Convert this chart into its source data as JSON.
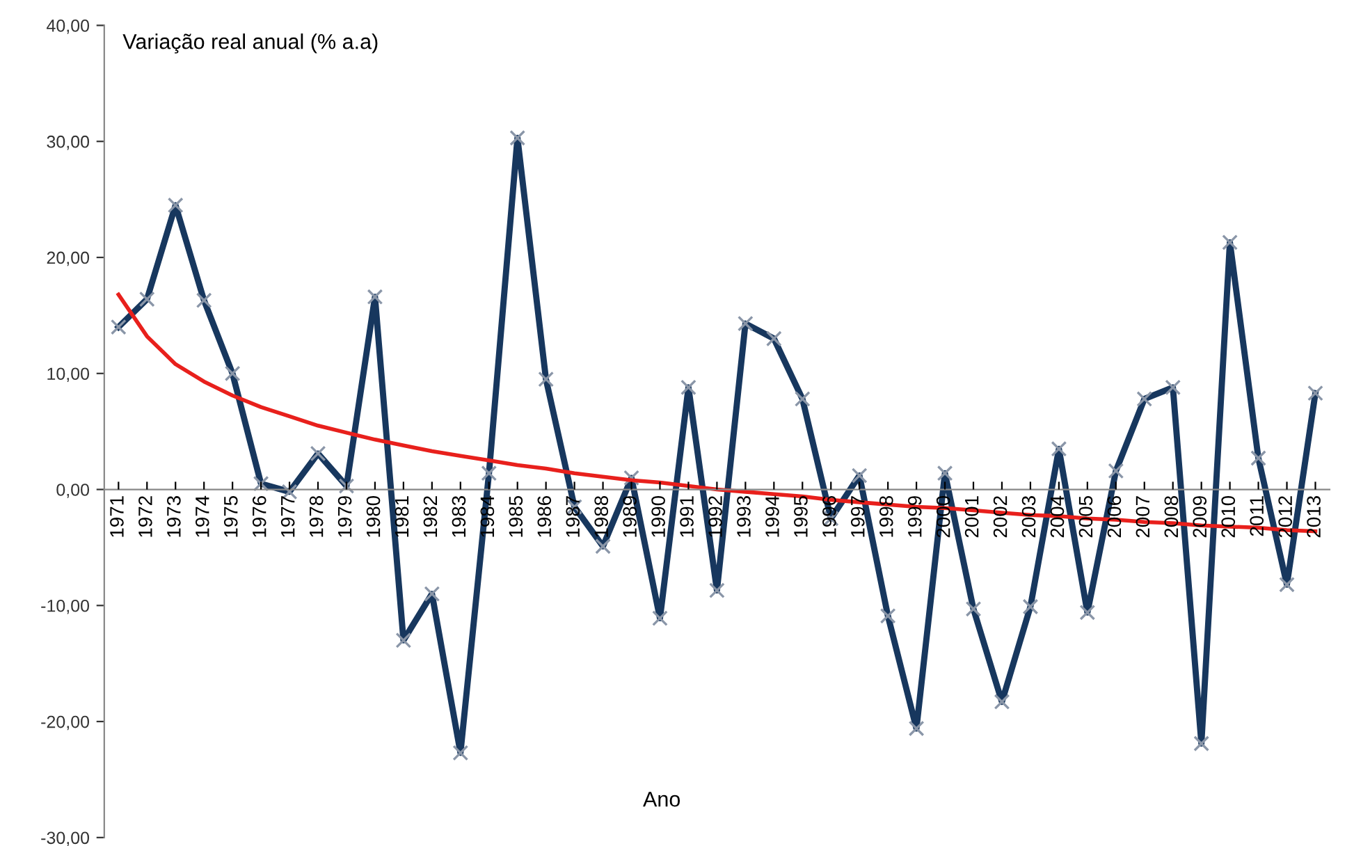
{
  "chart_data": {
    "type": "line",
    "ylabel": "Variação real anual (% a.a)",
    "xlabel": "Ano",
    "categories": [
      "1971",
      "1972",
      "1973",
      "1974",
      "1975",
      "1976",
      "1977",
      "1978",
      "1979",
      "1980",
      "1981",
      "1982",
      "1983",
      "1984",
      "1985",
      "1986",
      "1987",
      "1988",
      "1989",
      "1990",
      "1991",
      "1992",
      "1993",
      "1994",
      "1995",
      "1996",
      "1997",
      "1998",
      "1999",
      "2000",
      "2001",
      "2002",
      "2003",
      "2004",
      "2005",
      "2006",
      "2007",
      "2008",
      "2009",
      "2010",
      "2011",
      "2012",
      "2013"
    ],
    "series": [
      {
        "color": "#17375e",
        "marker": "cross",
        "values": [
          14.0,
          16.4,
          24.5,
          16.3,
          10.0,
          0.5,
          -0.2,
          3.1,
          0.3,
          16.6,
          -13.0,
          -9.0,
          -22.7,
          1.4,
          30.3,
          9.5,
          -1.5,
          -4.9,
          1.0,
          -11.1,
          8.8,
          -8.7,
          14.3,
          13.0,
          7.8,
          -2.5,
          1.2,
          -10.9,
          -20.6,
          1.4,
          -10.3,
          -18.3,
          -10.1,
          3.5,
          -10.6,
          1.6,
          7.8,
          8.8,
          -21.9,
          21.3,
          2.7,
          -8.2,
          8.3
        ]
      },
      {
        "color": "#e8201c",
        "marker": "none",
        "values": [
          16.8,
          13.2,
          10.8,
          9.3,
          8.1,
          7.1,
          6.3,
          5.5,
          4.9,
          4.3,
          3.8,
          3.3,
          2.9,
          2.5,
          2.1,
          1.8,
          1.4,
          1.1,
          0.8,
          0.6,
          0.3,
          0.0,
          -0.2,
          -0.4,
          -0.6,
          -0.9,
          -1.1,
          -1.3,
          -1.5,
          -1.6,
          -1.8,
          -2.0,
          -2.2,
          -2.3,
          -2.5,
          -2.6,
          -2.8,
          -2.9,
          -3.1,
          -3.2,
          -3.3,
          -3.5,
          -3.6
        ]
      }
    ],
    "ylim": [
      -30,
      40
    ],
    "yticks": [
      {
        "value": -30,
        "label": "-30,00"
      },
      {
        "value": -20,
        "label": "-20,00"
      },
      {
        "value": -10,
        "label": "-10,00"
      },
      {
        "value": 0,
        "label": "0,00"
      },
      {
        "value": 10,
        "label": "10,00"
      },
      {
        "value": 20,
        "label": "20,00"
      },
      {
        "value": 30,
        "label": "30,00"
      },
      {
        "value": 40,
        "label": "40,00"
      }
    ],
    "grid": false,
    "legend": false
  }
}
